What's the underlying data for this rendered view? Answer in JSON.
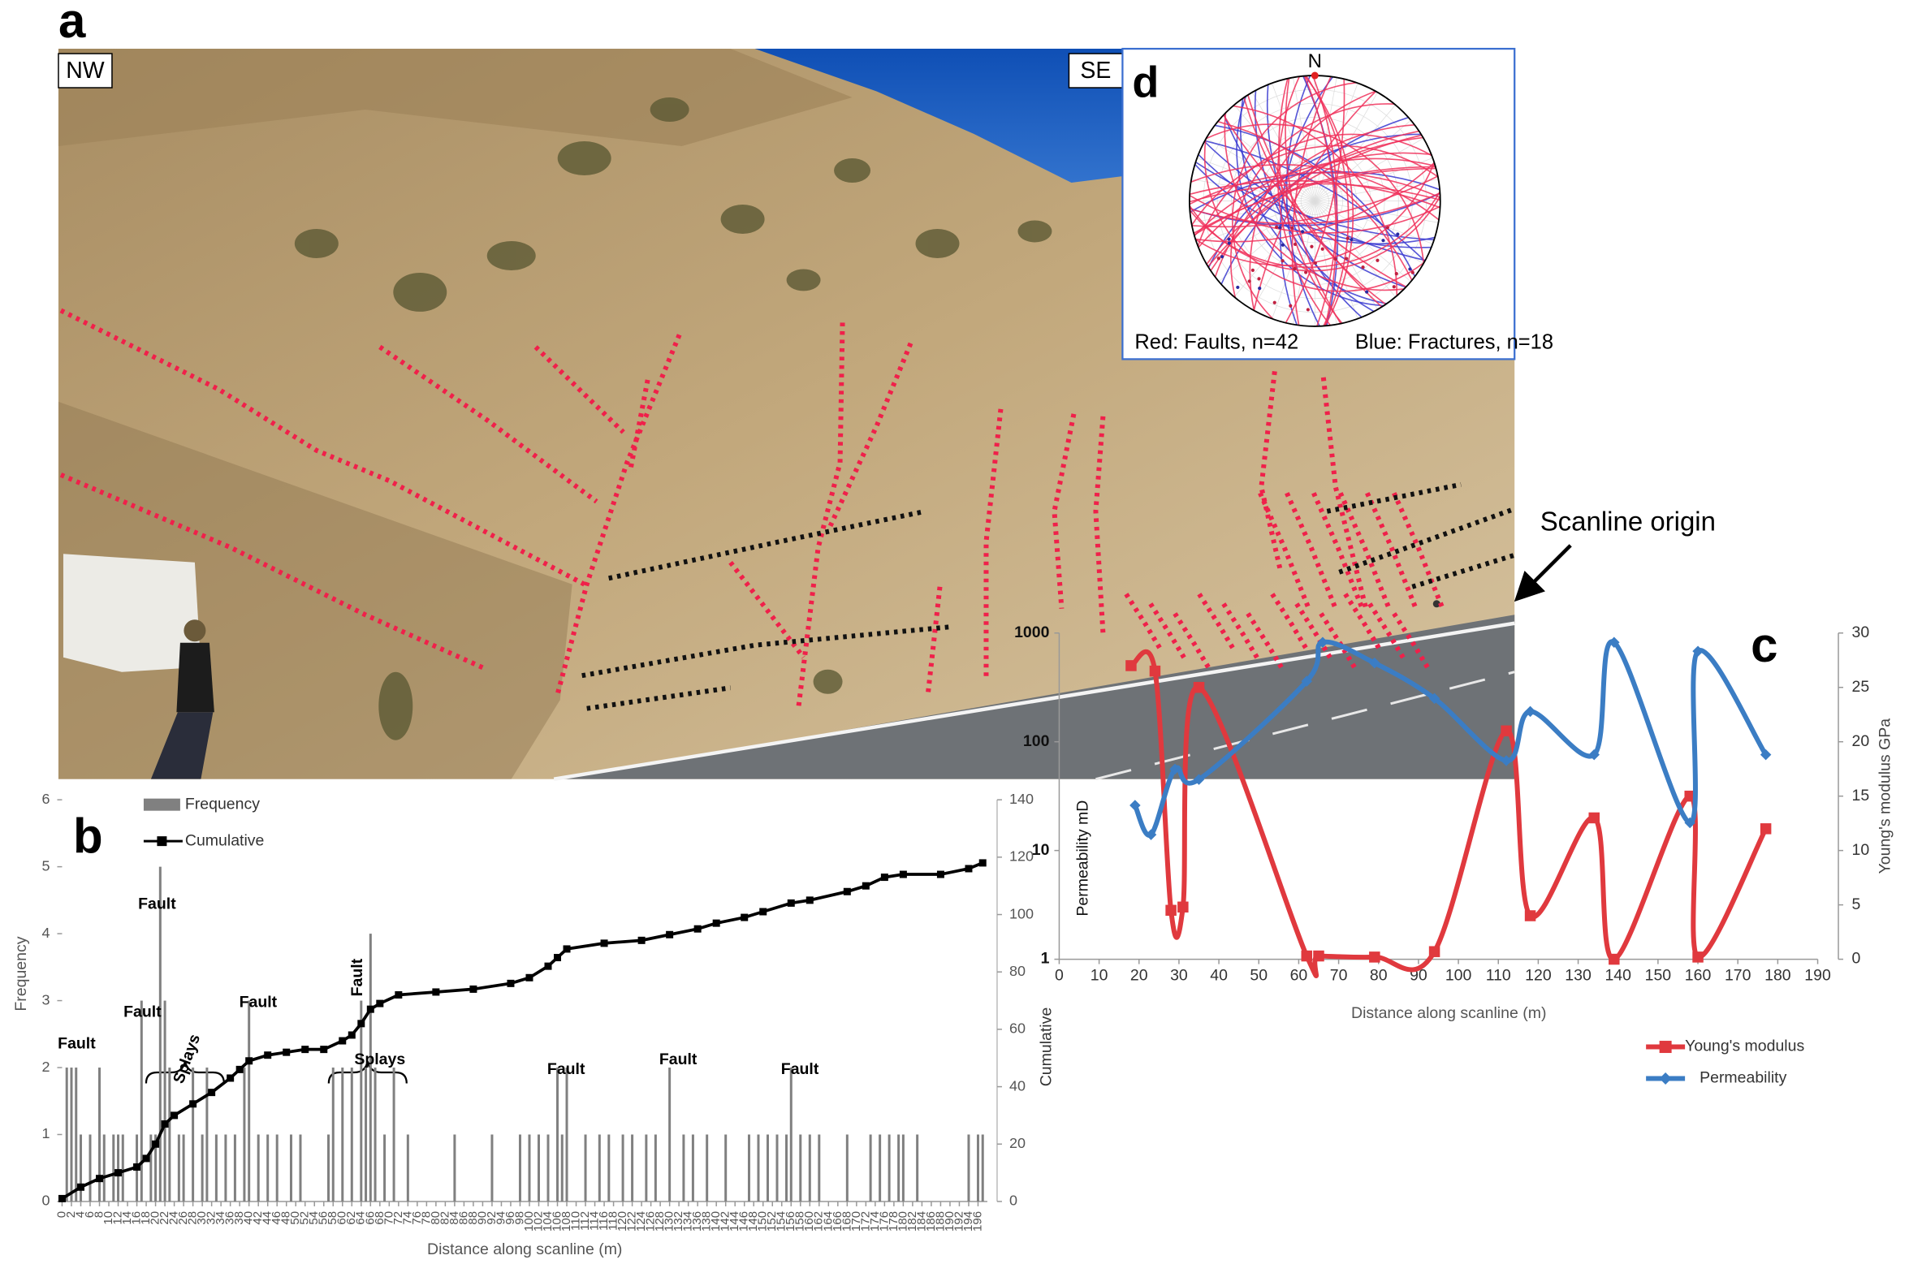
{
  "figure": {
    "panel_labels": [
      "a",
      "b",
      "c",
      "d"
    ],
    "photo": {
      "left_label": "NW",
      "right_label": "SE",
      "scanline_label": "Scanline origin"
    },
    "stereonet": {
      "north": "N",
      "faults_label": "Red: Faults, n=42",
      "fractures_label": "Blue: Fractures, n=18"
    }
  },
  "chart_data": [
    {
      "type": "bar",
      "x_label": "Distance along scanline (m)",
      "y_label": "Frequency",
      "y2_label": "Cumulative",
      "xlim": [
        0,
        198
      ],
      "xticks": [
        0,
        2,
        4,
        6,
        8,
        10,
        12,
        14,
        16,
        18,
        20,
        22,
        24,
        26,
        28,
        30,
        32,
        34,
        36,
        38,
        40,
        42,
        44,
        46,
        48,
        50,
        52,
        54,
        56,
        58,
        60,
        62,
        64,
        66,
        68,
        70,
        72,
        74,
        76,
        78,
        80,
        82,
        84,
        86,
        88,
        90,
        92,
        94,
        96,
        98,
        100,
        102,
        104,
        106,
        108,
        110,
        112,
        114,
        116,
        118,
        120,
        122,
        124,
        126,
        128,
        130,
        132,
        134,
        136,
        138,
        140,
        142,
        144,
        146,
        148,
        150,
        152,
        154,
        156,
        158,
        160,
        162,
        164,
        166,
        168,
        170,
        172,
        174,
        176,
        178,
        180,
        182,
        184,
        186,
        188,
        190,
        192,
        194,
        196
      ],
      "ylim": [
        0,
        6
      ],
      "yticks": [
        0,
        1,
        2,
        3,
        4,
        5,
        6
      ],
      "y2lim": [
        0,
        140
      ],
      "y2ticks": [
        0,
        20,
        40,
        60,
        80,
        100,
        120,
        140
      ],
      "annotations": [
        "Fault",
        "Fault",
        "Fault",
        "Fault",
        "Fault",
        "Fault",
        "Fault",
        "Fault",
        "Splays",
        "Splays"
      ],
      "series": [
        {
          "name": "Frequency",
          "type": "bar",
          "color": "#808080",
          "x": [
            1,
            2,
            3,
            4,
            6,
            8,
            9,
            11,
            12,
            13,
            16,
            17,
            19,
            20,
            21,
            22,
            23,
            25,
            26,
            28,
            30,
            31,
            33,
            35,
            37,
            39,
            40,
            42,
            44,
            46,
            49,
            51,
            57,
            58,
            60,
            62,
            64,
            65,
            66,
            67,
            69,
            71,
            74,
            84,
            92,
            98,
            100,
            102,
            104,
            106,
            107,
            108,
            112,
            115,
            117,
            120,
            122,
            125,
            127,
            130,
            133,
            135,
            138,
            142,
            147,
            149,
            151,
            153,
            155,
            156,
            158,
            160,
            162,
            168,
            173,
            175,
            177,
            179,
            180,
            183,
            194,
            196,
            197
          ],
          "values": [
            2,
            2,
            2,
            1,
            1,
            2,
            1,
            1,
            1,
            1,
            1,
            3,
            1,
            1,
            5,
            3,
            2,
            1,
            1,
            2,
            1,
            2,
            1,
            1,
            1,
            2,
            3,
            1,
            1,
            1,
            1,
            1,
            1,
            2,
            2,
            2,
            3,
            2,
            4,
            2,
            1,
            2,
            1,
            1,
            1,
            1,
            1,
            1,
            1,
            2,
            1,
            2,
            1,
            1,
            1,
            1,
            1,
            1,
            1,
            2,
            1,
            1,
            1,
            1,
            1,
            1,
            1,
            1,
            1,
            2,
            1,
            1,
            1,
            1,
            1,
            1,
            1,
            1,
            1,
            1,
            1,
            1,
            1
          ]
        },
        {
          "name": "Cumulative",
          "type": "line",
          "color": "#000000",
          "axis": "y2",
          "marker": "square",
          "x": [
            0,
            4,
            8,
            12,
            16,
            18,
            20,
            22,
            24,
            28,
            32,
            36,
            38,
            40,
            44,
            48,
            52,
            56,
            60,
            62,
            64,
            66,
            68,
            72,
            80,
            88,
            96,
            100,
            104,
            106,
            108,
            116,
            124,
            130,
            136,
            140,
            146,
            150,
            156,
            160,
            168,
            172,
            176,
            180,
            188,
            194,
            197
          ],
          "values": [
            1,
            5,
            8,
            10,
            12,
            15,
            20,
            27,
            30,
            34,
            38,
            43,
            46,
            49,
            51,
            52,
            53,
            53,
            56,
            58,
            62,
            67,
            69,
            72,
            73,
            74,
            76,
            78,
            82,
            85,
            88,
            90,
            91,
            93,
            95,
            97,
            99,
            101,
            104,
            105,
            108,
            110,
            113,
            114,
            114,
            116,
            118
          ]
        }
      ]
    },
    {
      "type": "line",
      "smooth": true,
      "x_label": "Distance along scanline (m)",
      "y_label": "Permeability mD",
      "y2_label": "Young's modulus GPa",
      "xlim": [
        0,
        190
      ],
      "xticks": [
        0,
        10,
        20,
        30,
        40,
        50,
        60,
        70,
        80,
        90,
        100,
        110,
        120,
        130,
        140,
        150,
        160,
        170,
        180,
        190
      ],
      "ylim": [
        1,
        1000
      ],
      "yticks": [
        1,
        10,
        100,
        1000
      ],
      "log_y": true,
      "y2lim": [
        0,
        30
      ],
      "y2ticks": [
        0,
        5,
        10,
        15,
        20,
        25,
        30
      ],
      "series": [
        {
          "name": "Young's modulus",
          "color": "#e0393e",
          "axis": "y2",
          "marker": "square",
          "x": [
            18,
            24,
            28,
            31,
            35,
            62,
            65,
            79,
            94,
            112,
            118,
            134,
            139,
            158,
            160,
            177
          ],
          "values": [
            27,
            26.5,
            4.5,
            4.8,
            25,
            0.3,
            0.3,
            0.2,
            0.7,
            21,
            4,
            13,
            0,
            15,
            0.2,
            12
          ]
        },
        {
          "name": "Permeability",
          "color": "#3b7dc4",
          "marker": "diamond",
          "x": [
            19,
            23,
            29,
            35,
            62,
            66,
            79,
            94,
            112,
            118,
            134,
            139,
            158,
            160,
            177
          ],
          "values": [
            26,
            14,
            56,
            45,
            360,
            820,
            530,
            250,
            67,
            190,
            76,
            820,
            18,
            680,
            76
          ]
        }
      ]
    }
  ]
}
